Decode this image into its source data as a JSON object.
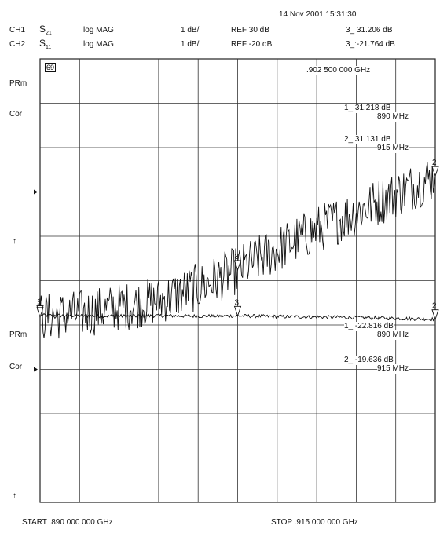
{
  "header": {
    "datetime": "14 Nov 2001  15:31:30",
    "ch1": {
      "label": "CH1",
      "param_main": "S",
      "param_sub": "21",
      "format": "log MAG",
      "scale": "1 dB/",
      "ref": "REF 30 dB",
      "marker": "3_  31.206 dB"
    },
    "ch2": {
      "label": "CH2",
      "param_main": "S",
      "param_sub": "11",
      "format": "log MAG",
      "scale": "1 dB/",
      "ref": "REF -20 dB",
      "marker": "3_:-21.764 dB"
    }
  },
  "left_labels": {
    "top_box": "69",
    "prm1": "PRm",
    "cor1": "Cor",
    "ref_arrow1": "↑",
    "prm2": "PRm",
    "cor2": "Cor",
    "ref_arrow2": "↑"
  },
  "markers_ch1": {
    "freq": ".902 500 000 GHz",
    "m1_value": "1_  31.218 dB",
    "m1_freq": "890 MHz",
    "m2_value": "2_  31.131 dB",
    "m2_freq": "915 MHz"
  },
  "markers_ch2": {
    "m1_value": "1_:-22.816 dB",
    "m1_freq": "890 MHz",
    "m2_value": "2_:-19.636 dB",
    "m2_freq": "915 MHz"
  },
  "footer": {
    "start": "START  .890 000 000 GHz",
    "stop": "STOP  .915 000 000 GHz"
  },
  "chart_data": {
    "type": "line",
    "xlabel": "",
    "ylabel": "",
    "x_start_GHz": 0.89,
    "x_stop_GHz": 0.915,
    "grid": true,
    "series": [
      {
        "name": "S21",
        "x_GHz": [
          0.89,
          0.8925,
          0.895,
          0.8975,
          0.9,
          0.9025,
          0.905,
          0.9075,
          0.91,
          0.9125,
          0.915
        ],
        "y_dB": [
          31.22,
          31.21,
          31.2,
          31.21,
          31.2,
          31.206,
          31.19,
          31.18,
          31.17,
          31.15,
          31.13
        ],
        "ref_dB": 30,
        "scale_dB_per_div": 1,
        "ref_position_div_from_bottom": 3,
        "color": "#111111"
      },
      {
        "name": "S11",
        "x_GHz": [
          0.89,
          0.8925,
          0.895,
          0.8975,
          0.9,
          0.9025,
          0.905,
          0.9075,
          0.91,
          0.9125,
          0.915
        ],
        "y_dB": [
          -22.82,
          -22.75,
          -22.6,
          -22.45,
          -22.15,
          -21.76,
          -21.3,
          -20.85,
          -20.45,
          -20.05,
          -19.64
        ],
        "ref_dB": -20,
        "scale_dB_per_div": 1,
        "ref_position_div_from_bottom": 7,
        "color": "#111111"
      }
    ],
    "markers": [
      {
        "id": "1",
        "x_GHz": 0.89
      },
      {
        "id": "2",
        "x_GHz": 0.915
      },
      {
        "id": "3",
        "x_GHz": 0.9025
      }
    ]
  }
}
